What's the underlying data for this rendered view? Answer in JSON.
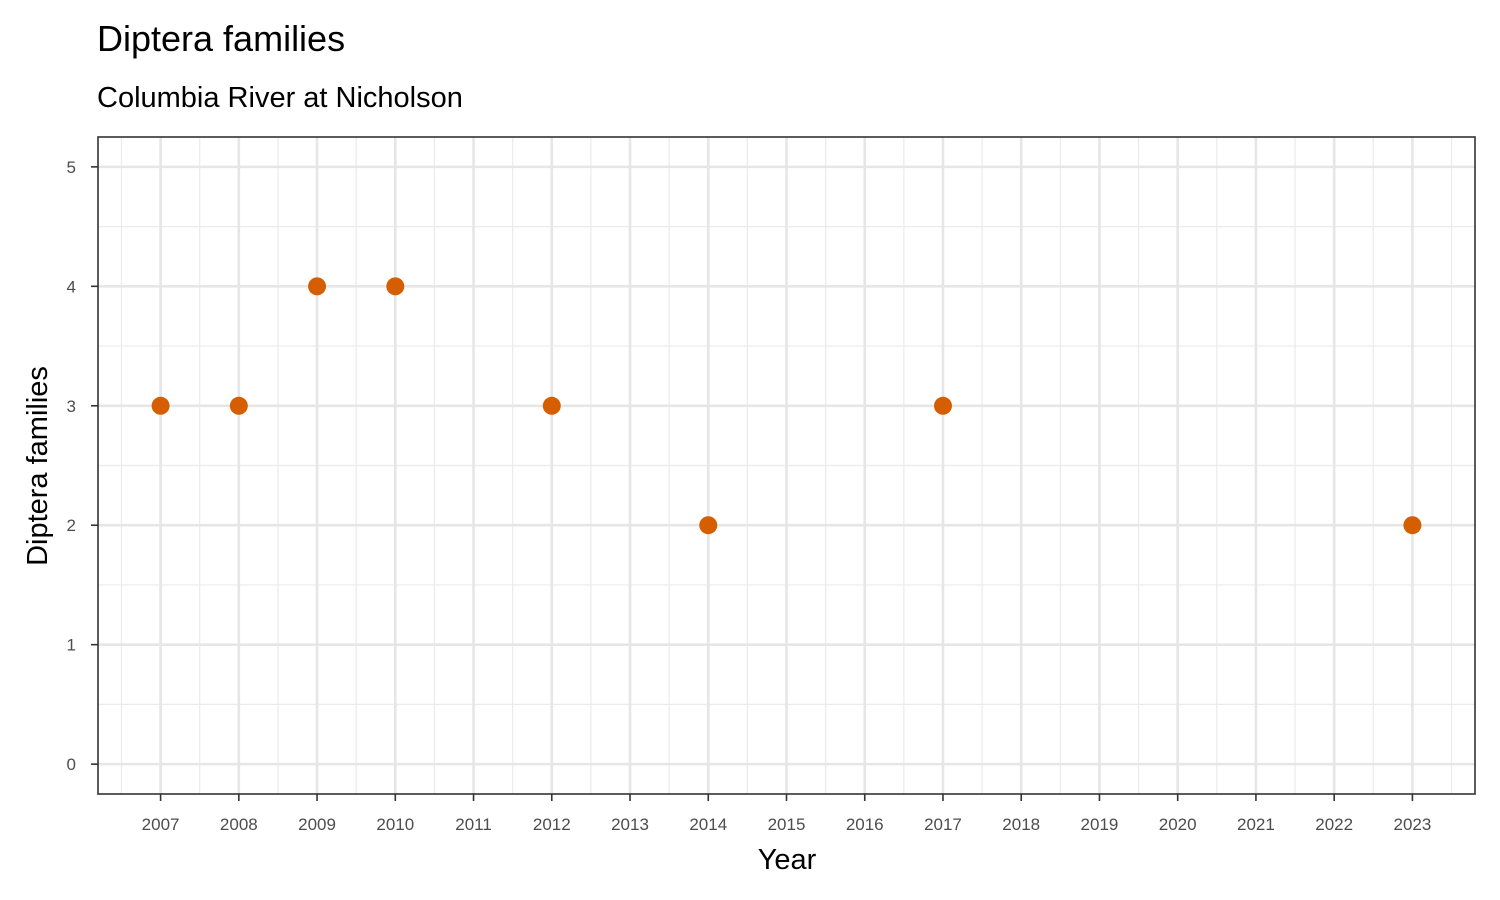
{
  "chart_data": {
    "type": "scatter",
    "title": "Diptera families",
    "subtitle": "Columbia River at Nicholson",
    "xlabel": "Year",
    "ylabel": "Diptera families",
    "xlim": [
      2006.2,
      2023.8
    ],
    "ylim": [
      -0.25,
      5.25
    ],
    "x_ticks": [
      2007,
      2008,
      2009,
      2010,
      2011,
      2012,
      2013,
      2014,
      2015,
      2016,
      2017,
      2018,
      2019,
      2020,
      2021,
      2022,
      2023
    ],
    "y_ticks": [
      0,
      1,
      2,
      3,
      4,
      5
    ],
    "grid": true,
    "legend": "none",
    "point_color": "#d55e00",
    "points": [
      {
        "x": 2007,
        "y": 3
      },
      {
        "x": 2008,
        "y": 3
      },
      {
        "x": 2009,
        "y": 4
      },
      {
        "x": 2010,
        "y": 4
      },
      {
        "x": 2012,
        "y": 3
      },
      {
        "x": 2014,
        "y": 2
      },
      {
        "x": 2017,
        "y": 3
      },
      {
        "x": 2023,
        "y": 2
      }
    ]
  }
}
